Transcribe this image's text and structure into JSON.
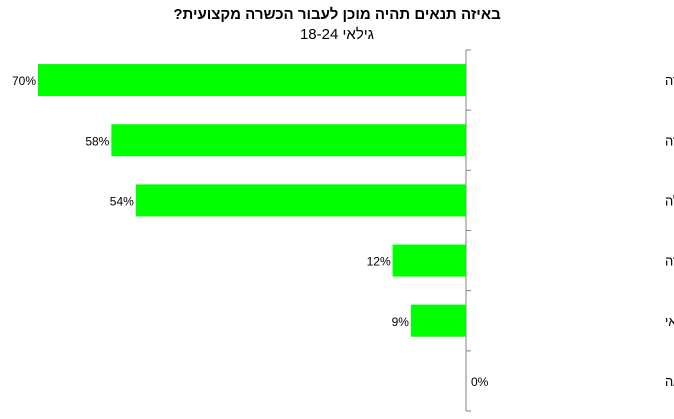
{
  "chart_data": {
    "type": "bar",
    "orientation": "horizontal",
    "title": "באיזה תנאים תהיה מוכן לעבור הכשרה מקצועית?",
    "subtitle": "גילאי 18-24",
    "categories": [
      "עבודה מובטחת בתחום ההכשרה",
      "אפשרות בחירת תחום ההכשרה",
      "דמי קיום בגובה דמי אבטלה",
      "מעורבות מעסיק בהכשרה",
      "מוכנים ללא כל תנאי",
      "לא יודע/ה"
    ],
    "values": [
      70,
      58,
      54,
      12,
      9,
      0
    ],
    "data_labels": [
      "70%",
      "58%",
      "54%",
      "12%",
      "9%",
      "0%"
    ],
    "unit": "%",
    "xlim": [
      0,
      70
    ],
    "bar_color": "#00ff00",
    "axis_color": "#808080",
    "grid": false,
    "legend": "none"
  }
}
